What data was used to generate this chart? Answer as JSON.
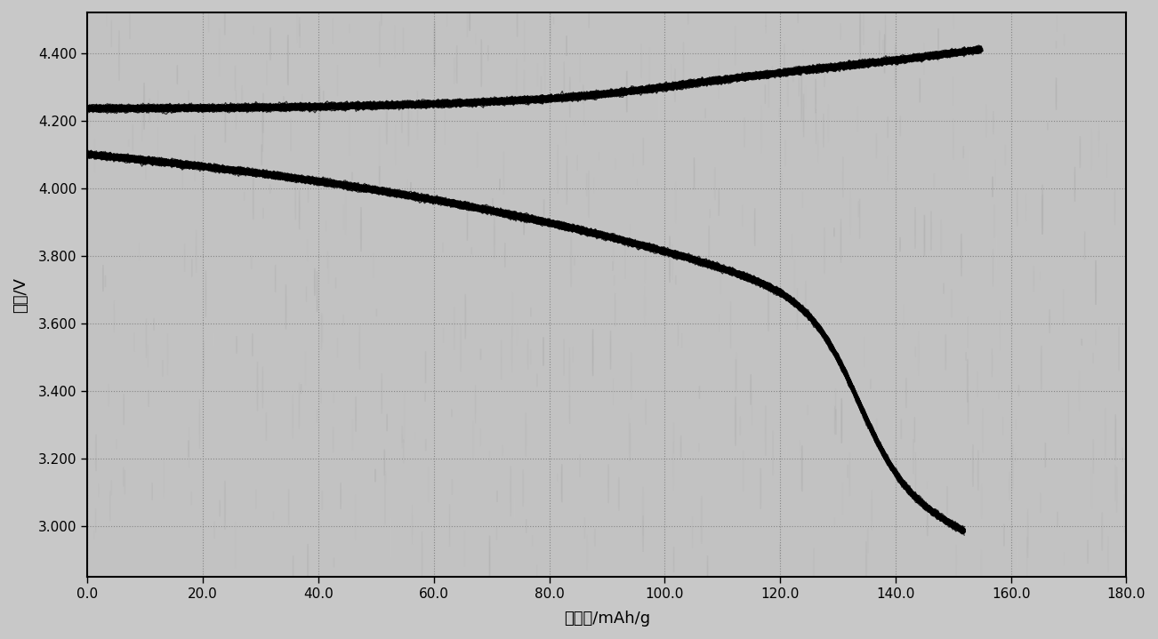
{
  "title": "",
  "xlabel": "比容量/mAh/g",
  "ylabel": "电压/V",
  "xlim": [
    0.0,
    180.0
  ],
  "ylim": [
    2.85,
    4.52
  ],
  "xticks": [
    0.0,
    20.0,
    40.0,
    60.0,
    80.0,
    100.0,
    120.0,
    140.0,
    160.0,
    180.0
  ],
  "yticks": [
    3.0,
    3.2,
    3.4,
    3.6,
    3.8,
    4.0,
    4.2,
    4.4
  ],
  "bg_color": "#bebebe",
  "line_color": "#000000",
  "n_cycles": 60,
  "charge_y0": 4.255,
  "charge_y_mid": 4.3,
  "charge_y_end": 4.385,
  "charge_x_end": 155.0,
  "discharge_y0": 4.1,
  "discharge_y_mid": 3.7,
  "discharge_y_end": 3.0,
  "discharge_x_end": 152.0
}
